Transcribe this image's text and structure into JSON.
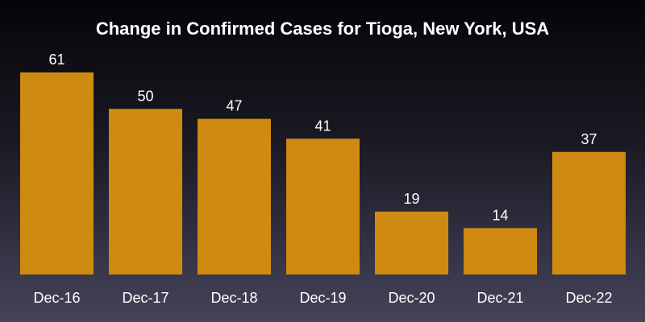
{
  "chart_data": {
    "type": "bar",
    "title": "Change in Confirmed Cases for Tioga, New York, USA",
    "categories": [
      "Dec-16",
      "Dec-17",
      "Dec-18",
      "Dec-19",
      "Dec-20",
      "Dec-21",
      "Dec-22"
    ],
    "values": [
      61,
      50,
      47,
      41,
      19,
      14,
      37
    ],
    "ylim": [
      0,
      61
    ],
    "grid": false,
    "xlabel": "",
    "ylabel": "",
    "bar_color": "#cf8a11",
    "background_color": "#050508"
  }
}
